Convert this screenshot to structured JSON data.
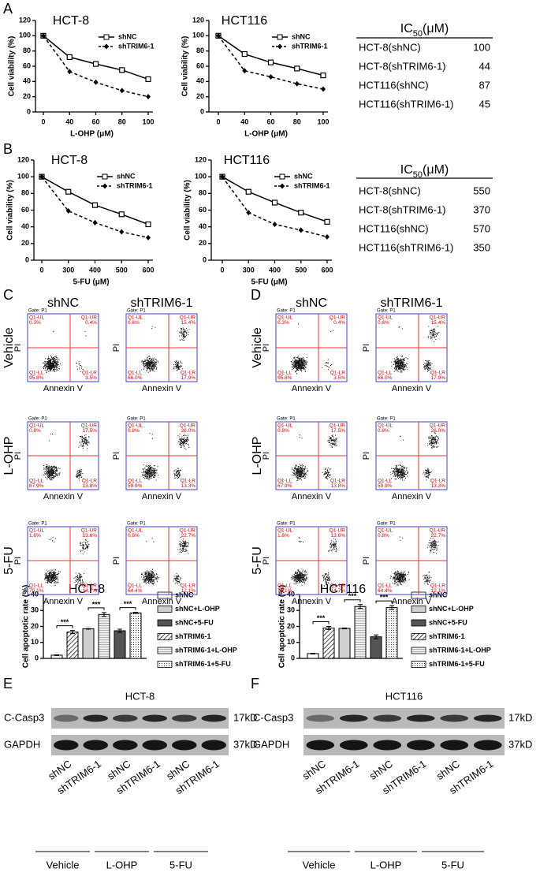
{
  "panel_labels": [
    "A",
    "B",
    "C",
    "D",
    "E",
    "F"
  ],
  "chart_data": [
    {
      "type": "line",
      "title": "HCT-8",
      "x_label": "L-OHP (μM)",
      "y_label": "Cell viability (%)",
      "categories": [
        "0",
        "40",
        "60",
        "80",
        "100"
      ],
      "ylim": [
        0,
        120
      ],
      "yticks": [
        0,
        20,
        40,
        60,
        80,
        100,
        120
      ],
      "series": [
        {
          "name": "shNC",
          "color": "#000000",
          "marker": "square",
          "dash": "solid",
          "values": [
            100,
            72,
            63,
            55,
            43
          ]
        },
        {
          "name": "shTRIM6-1",
          "color": "#000000",
          "marker": "diamond",
          "dash": "dashed",
          "values": [
            100,
            53,
            39,
            28,
            20
          ]
        }
      ]
    },
    {
      "type": "line",
      "title": "HCT116",
      "x_label": "L-OHP (μM)",
      "y_label": "Cell viability (%)",
      "categories": [
        "0",
        "40",
        "60",
        "80",
        "100"
      ],
      "ylim": [
        0,
        120
      ],
      "yticks": [
        0,
        20,
        40,
        60,
        80,
        100,
        120
      ],
      "series": [
        {
          "name": "shNC",
          "color": "#000000",
          "marker": "square",
          "dash": "solid",
          "values": [
            100,
            76,
            65,
            57,
            48
          ]
        },
        {
          "name": "shTRIM6-1",
          "color": "#000000",
          "marker": "diamond",
          "dash": "dashed",
          "values": [
            100,
            54,
            46,
            37,
            30
          ]
        }
      ]
    },
    {
      "type": "line",
      "title": "HCT-8",
      "x_label": "5-FU (μM)",
      "y_label": "Cell viability (%)",
      "categories": [
        "0",
        "300",
        "400",
        "500",
        "600"
      ],
      "ylim": [
        0,
        120
      ],
      "yticks": [
        0,
        20,
        40,
        60,
        80,
        100,
        120
      ],
      "series": [
        {
          "name": "shNC",
          "color": "#000000",
          "marker": "square",
          "dash": "solid",
          "values": [
            100,
            82,
            66,
            55,
            43
          ]
        },
        {
          "name": "shTRIM6-1",
          "color": "#000000",
          "marker": "diamond",
          "dash": "dashed",
          "values": [
            100,
            59,
            45,
            34,
            27
          ]
        }
      ]
    },
    {
      "type": "line",
      "title": "HCT116",
      "x_label": "5-FU (μM)",
      "y_label": "Cell viability (%)",
      "categories": [
        "0",
        "300",
        "400",
        "500",
        "600"
      ],
      "ylim": [
        0,
        120
      ],
      "yticks": [
        0,
        20,
        40,
        60,
        80,
        100,
        120
      ],
      "series": [
        {
          "name": "shNC",
          "color": "#000000",
          "marker": "square",
          "dash": "solid",
          "values": [
            100,
            82,
            69,
            57,
            46
          ]
        },
        {
          "name": "shTRIM6-1",
          "color": "#000000",
          "marker": "diamond",
          "dash": "dashed",
          "values": [
            100,
            57,
            43,
            36,
            28
          ]
        }
      ]
    },
    {
      "type": "bar",
      "title": "HCT-8",
      "y_label": "Cell apoptotic rate (%)",
      "ylim": [
        0,
        40
      ],
      "yticks": [
        0,
        10,
        20,
        30,
        40
      ],
      "series": [
        {
          "name": "shNC",
          "pattern": "white",
          "values": [
            2
          ],
          "errors": [
            0.2
          ]
        },
        {
          "name": "shNC+L-OHP",
          "pattern": "gray",
          "values": [
            18.5
          ],
          "errors": [
            0.2
          ]
        },
        {
          "name": "shNC+5-FU",
          "pattern": "dark",
          "values": [
            17.3
          ],
          "errors": [
            1
          ]
        },
        {
          "name": "shTRIM6-1",
          "pattern": "hatch",
          "values": [
            16.5
          ],
          "errors": [
            1
          ]
        },
        {
          "name": "shTRIM6-1+L-OHP",
          "pattern": "lines",
          "values": [
            27.5
          ],
          "errors": [
            1.2
          ]
        },
        {
          "name": "shTRIM6-1+5-FU",
          "pattern": "dots",
          "values": [
            28.5
          ],
          "errors": [
            0.3
          ]
        }
      ],
      "significance": [
        "***",
        "***",
        "***"
      ]
    },
    {
      "type": "bar",
      "title": "HCT116",
      "y_label": "Cell apoptotic rate (%)",
      "ylim": [
        0,
        40
      ],
      "yticks": [
        0,
        10,
        20,
        30,
        40
      ],
      "series": [
        {
          "name": "shNC",
          "pattern": "white",
          "values": [
            3
          ],
          "errors": [
            0.2
          ]
        },
        {
          "name": "shNC+L-OHP",
          "pattern": "gray",
          "values": [
            18.8
          ],
          "errors": [
            0.3
          ]
        },
        {
          "name": "shNC+5-FU",
          "pattern": "dark",
          "values": [
            13.5
          ],
          "errors": [
            1.2
          ]
        },
        {
          "name": "shTRIM6-1",
          "pattern": "hatch",
          "values": [
            19
          ],
          "errors": [
            1
          ]
        },
        {
          "name": "shTRIM6-1+L-OHP",
          "pattern": "lines",
          "values": [
            32.5
          ],
          "errors": [
            1.2
          ]
        },
        {
          "name": "shTRIM6-1+5-FU",
          "pattern": "dots",
          "values": [
            31.8
          ],
          "errors": [
            1.2
          ]
        }
      ],
      "significance": [
        "***",
        "***",
        "***"
      ]
    }
  ],
  "ic50_tables": [
    {
      "header": {
        "main": "IC",
        "sub": "50",
        "unit": "(μM)"
      },
      "rows": [
        [
          "HCT-8(shNC)",
          100
        ],
        [
          "HCT-8(shTRIM6-1)",
          44
        ],
        [
          "HCT116(shNC)",
          87
        ],
        [
          "HCT116(shTRIM6-1)",
          45
        ]
      ]
    },
    {
      "header": {
        "main": "IC",
        "sub": "50",
        "unit": "(μM)"
      },
      "rows": [
        [
          "HCT-8(shNC)",
          550
        ],
        [
          "HCT-8(shTRIM6-1)",
          370
        ],
        [
          "HCT116(shNC)",
          570
        ],
        [
          "HCT116(shTRIM6-1)",
          350
        ]
      ]
    }
  ],
  "flow_common": {
    "gate": "Gate: P1",
    "x_label": "Annexin V",
    "y_label": "PI",
    "quadrants": {
      "UL": "Q1-UL",
      "UR": "Q1-UR",
      "LL": "Q1-LL",
      "LR": "Q1-LR"
    }
  },
  "flow_panels": [
    {
      "columns": [
        "shNC",
        "shTRIM6-1"
      ],
      "rows": [
        "Vehicle",
        "L-OHP",
        "5-FU"
      ],
      "plots": [
        [
          {
            "UL": "0.3%",
            "UR": "0.4%",
            "LL": "95.8%",
            "LR": "3.5%"
          },
          {
            "UL": "0.6%",
            "UR": "15.4%",
            "LL": "66.0%",
            "LR": "17.9%"
          }
        ],
        [
          {
            "UL": "0.8%",
            "UR": "17.5%",
            "LL": "67.9%",
            "LR": "13.8%"
          },
          {
            "UL": "0.8%",
            "UR": "26.0%",
            "LL": "59.9%",
            "LR": "13.3%"
          }
        ],
        [
          {
            "UL": "1.6%",
            "UR": "13.6%",
            "LL": "70.1%",
            "LR": "14.7%"
          },
          {
            "UL": "0.8%",
            "UR": "22.7%",
            "LL": "64.4%",
            "LR": "12.1%"
          }
        ]
      ]
    },
    {
      "columns": [
        "shNC",
        "shTRIM6-1"
      ],
      "rows": [
        "Vehicle",
        "L-OHP",
        "5-FU"
      ],
      "plots": [
        [
          {
            "UL": "0.3%",
            "UR": "0.4%",
            "LL": "95.8%",
            "LR": "3.5%"
          },
          {
            "UL": "0.6%",
            "UR": "15.4%",
            "LL": "66.0%",
            "LR": "17.9%"
          }
        ],
        [
          {
            "UL": "0.8%",
            "UR": "17.5%",
            "LL": "67.9%",
            "LR": "13.8%"
          },
          {
            "UL": "0.8%",
            "UR": "26.0%",
            "LL": "59.9%",
            "LR": "13.3%"
          }
        ],
        [
          {
            "UL": "1.6%",
            "UR": "13.6%",
            "LL": "70.1%",
            "LR": "14.7%"
          },
          {
            "UL": "0.8%",
            "UR": "22.7%",
            "LL": "64.4%",
            "LR": "12.1%"
          }
        ]
      ]
    }
  ],
  "blots": [
    {
      "title": "HCT-8",
      "rows": [
        {
          "name": "C-Casp3",
          "size": "17kD"
        },
        {
          "name": "GAPDH",
          "size": "37kD"
        }
      ],
      "lanes": [
        "shNC",
        "shTRIM6-1",
        "shNC",
        "shTRIM6-1",
        "shNC",
        "shTRIM6-1"
      ],
      "groups": [
        "Vehicle",
        "L-OHP",
        "5-FU"
      ]
    },
    {
      "title": "HCT116",
      "rows": [
        {
          "name": "C-Casp3",
          "size": "17kD"
        },
        {
          "name": "GAPDH",
          "size": "37kD"
        }
      ],
      "lanes": [
        "shNC",
        "shTRIM6-1",
        "shNC",
        "shTRIM6-1",
        "shNC",
        "shTRIM6-1"
      ],
      "groups": [
        "Vehicle",
        "L-OHP",
        "5-FU"
      ]
    }
  ]
}
